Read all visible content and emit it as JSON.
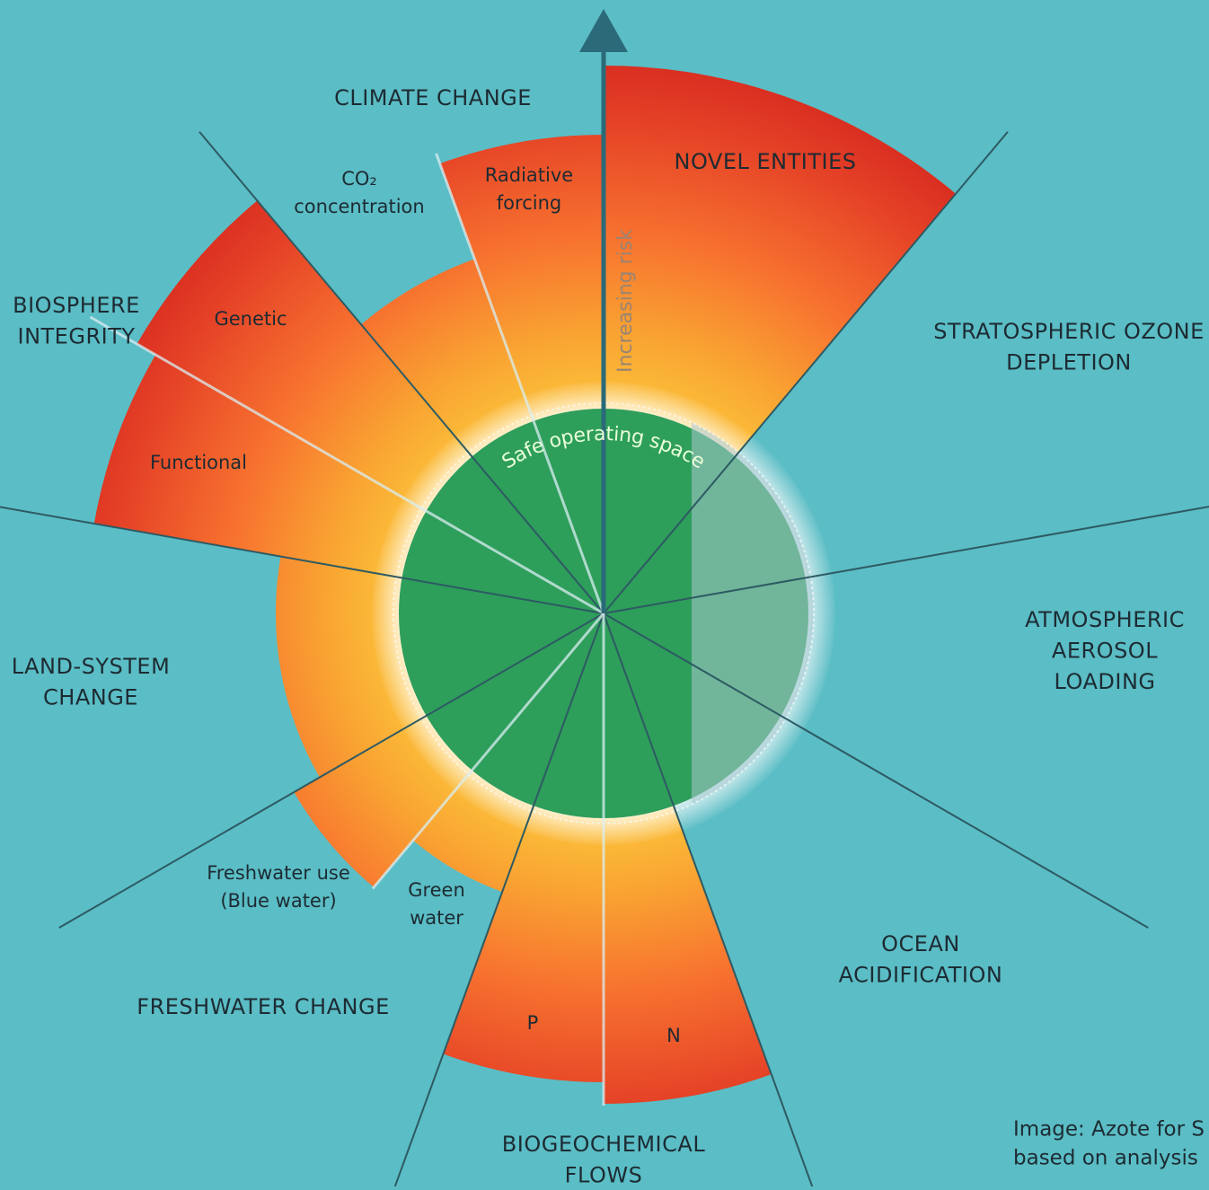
{
  "boundaries": {
    "climate": [
      "CLIMATE CHANGE"
    ],
    "novel": [
      "NOVEL ENTITIES"
    ],
    "ozone": [
      "STRATOSPHERIC OZONE",
      "DEPLETION"
    ],
    "aerosol": [
      "ATMOSPHERIC",
      "AEROSOL",
      "LOADING"
    ],
    "ocean": [
      "OCEAN",
      "ACIDIFICATION"
    ],
    "biogeo": [
      "BIOGEOCHEMICAL",
      "FLOWS"
    ],
    "freshwater": [
      "FRESHWATER CHANGE"
    ],
    "land": [
      "LAND-SYSTEM",
      "CHANGE"
    ],
    "biosphere": [
      "BIOSPHERE",
      "INTEGRITY"
    ]
  },
  "sublabels": {
    "co2": [
      "CO₂",
      "concentration"
    ],
    "radiative": [
      "Radiative",
      "forcing"
    ],
    "genetic": [
      "Genetic"
    ],
    "functional": [
      "Functional"
    ],
    "blue": [
      "Freshwater use",
      "(Blue water)"
    ],
    "green": [
      "Green",
      "water"
    ],
    "p": [
      "P"
    ],
    "n": [
      "N"
    ]
  },
  "center": {
    "safe": "Safe operating space",
    "risk": "Increasing risk"
  },
  "credit": [
    "Image: Azote for S",
    "based on analysis"
  ]
}
